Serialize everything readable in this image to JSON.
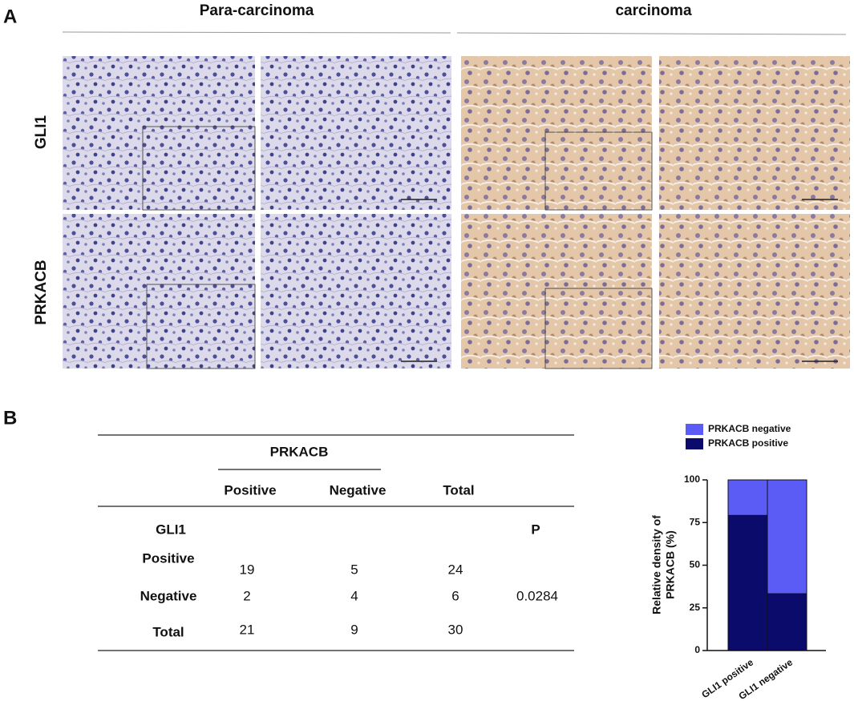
{
  "panel_a": {
    "label": "A",
    "columns": [
      "Para-carcinoma",
      "carcinoma"
    ],
    "rows": [
      "GLI1",
      "PRKACB"
    ]
  },
  "panel_b": {
    "label": "B",
    "table": {
      "group_header": "PRKACB",
      "columns": [
        "Positive",
        "Negative",
        "Total"
      ],
      "row_header": "GLI1",
      "p_header": "P",
      "rows": [
        {
          "label": "Positive",
          "values": [
            19,
            5,
            24
          ]
        },
        {
          "label": "Negative",
          "values": [
            2,
            4,
            6
          ]
        },
        {
          "label": "Total",
          "values": [
            21,
            9,
            30
          ]
        }
      ],
      "p_value": 0.0284
    }
  },
  "chart_data": {
    "type": "stacked_bar",
    "y_label": [
      "Relative density of",
      "PRKACB (%)"
    ],
    "categories": [
      "GLI1 positive",
      "GLI1 negative"
    ],
    "series": [
      {
        "name": "PRKACB positive",
        "color": "#0b0b6b",
        "values": [
          79.2,
          33.3
        ]
      },
      {
        "name": "PRKACB negative",
        "color": "#5b5bf6",
        "values": [
          20.8,
          66.7
        ]
      }
    ],
    "ylim": [
      0,
      100
    ],
    "yticks": [
      0,
      25,
      50,
      75,
      100
    ],
    "legend": "top-left"
  }
}
